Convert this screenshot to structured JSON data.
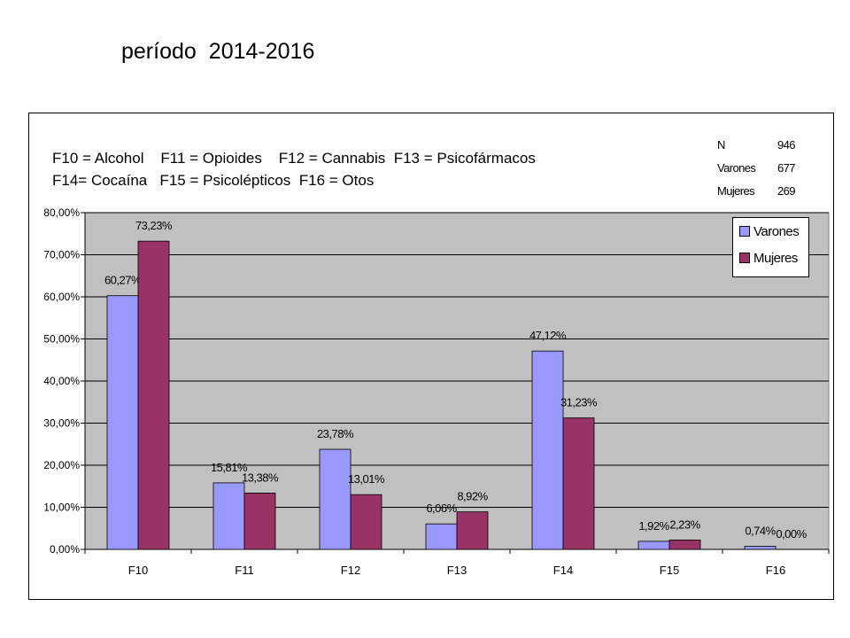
{
  "page": {
    "title_word": "período",
    "title_years": "2014-2016",
    "note_line1": "F10 = Alcohol    F11 = Opioides    F12 = Cannabis  F13 = Psicofármacos",
    "note_line2": "F14= Cocaína   F15 = Psicolépticos  F16 = Otos"
  },
  "stats": {
    "n_label": "N",
    "n_value": "946",
    "men_label": "Varones",
    "men_value": "677",
    "women_label": "Mujeres",
    "women_value": "269"
  },
  "chart_data": {
    "type": "bar",
    "categories": [
      "F10",
      "F11",
      "F12",
      "F13",
      "F14",
      "F15",
      "F16"
    ],
    "series": [
      {
        "name": "Varones",
        "color": "#9999ff",
        "values": [
          60.27,
          15.81,
          23.78,
          6.06,
          47.12,
          1.92,
          0.74
        ],
        "labels": [
          "60,27%",
          "15,81%",
          "23,78%",
          "6,06%",
          "47,12%",
          "1,92%",
          "0,74%"
        ]
      },
      {
        "name": "Mujeres",
        "color": "#993366",
        "values": [
          73.23,
          13.38,
          13.01,
          8.92,
          31.23,
          2.23,
          0.0
        ],
        "labels": [
          "73,23%",
          "13,38%",
          "13,01%",
          "8,92%",
          "31,23%",
          "2,23%",
          "0,00%"
        ]
      }
    ],
    "y_ticks": [
      "0,00%",
      "10,00%",
      "20,00%",
      "30,00%",
      "40,00%",
      "50,00%",
      "60,00%",
      "70,00%",
      "80,00%"
    ],
    "ylim": [
      0,
      80
    ],
    "grid": true,
    "plot_background": "#c0c0c0",
    "legend_position": "top-right"
  }
}
